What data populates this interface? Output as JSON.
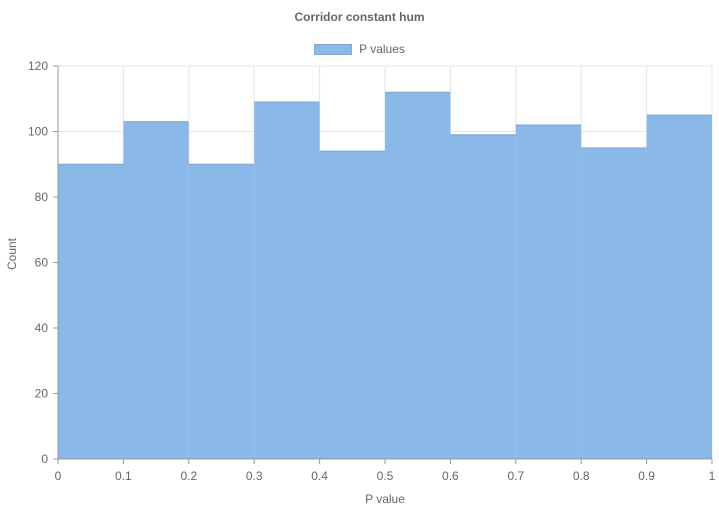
{
  "chart_data": {
    "type": "bar",
    "title": "Corridor constant hum",
    "xlabel": "P value",
    "ylabel": "Count",
    "legend": {
      "label": "P values",
      "position": "top-center"
    },
    "bin_edges": [
      0,
      0.1,
      0.2,
      0.3,
      0.4,
      0.5,
      0.6,
      0.7,
      0.8,
      0.9,
      1
    ],
    "series": [
      {
        "name": "P values",
        "values": [
          90,
          103,
          90,
          109,
          94,
          112,
          99,
          102,
          95,
          105
        ]
      }
    ],
    "x_ticks": [
      "0",
      "0.1",
      "0.2",
      "0.3",
      "0.4",
      "0.5",
      "0.6",
      "0.7",
      "0.8",
      "0.9",
      "1"
    ],
    "y_ticks": [
      "0",
      "20",
      "40",
      "60",
      "80",
      "100",
      "120"
    ],
    "xlim": [
      0,
      1
    ],
    "ylim": [
      0,
      120
    ],
    "grid": true,
    "colors": {
      "bar_fill": "#8ab8e8",
      "bar_edge": "#7aaade",
      "grid": "#e6e6e6",
      "axis": "#999999"
    }
  }
}
